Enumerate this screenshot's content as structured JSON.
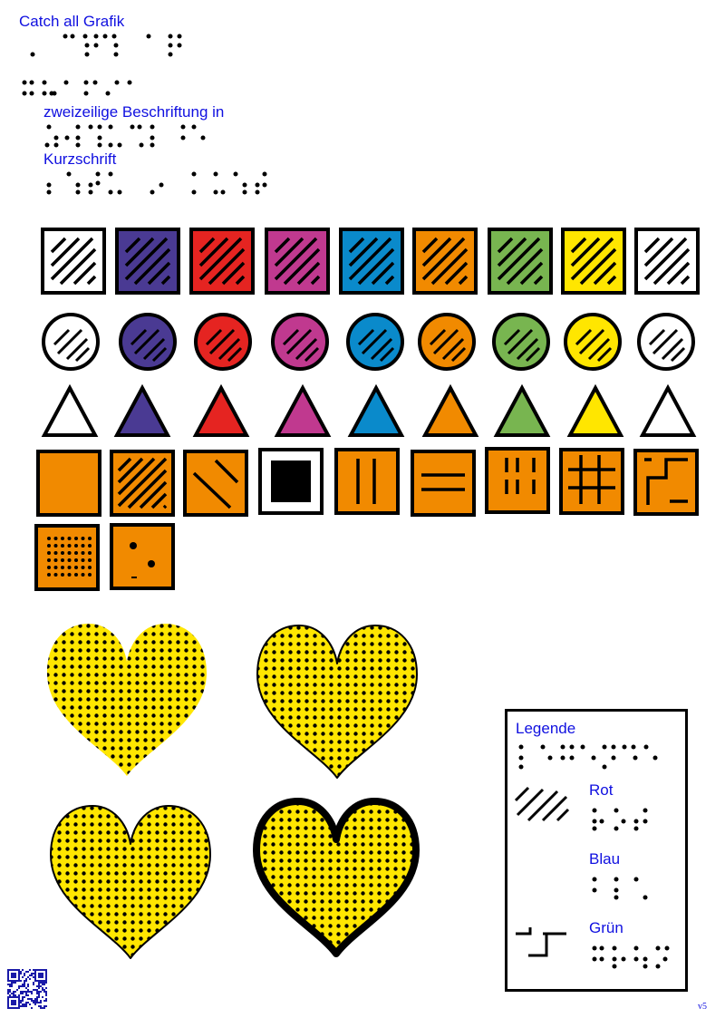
{
  "header": {
    "title": "Catch all Grafik",
    "subtitle_line1": "zweizeilige Beschriftung in",
    "subtitle_line2": "Kurzschrift"
  },
  "colors": {
    "label_text": "#1010e0",
    "white": "#ffffff",
    "purple": "#4a3a93",
    "red": "#e52421",
    "magenta": "#c0398f",
    "blue": "#0a8acb",
    "orange": "#f18a00",
    "green": "#78b550",
    "yellow": "#ffe600",
    "black": "#000000"
  },
  "swatch_colors": [
    "white",
    "purple",
    "red",
    "magenta",
    "blue",
    "orange",
    "green",
    "yellow",
    "white"
  ],
  "orange_patterns": [
    "solid",
    "diagonal-hatch",
    "diagonal-sparse",
    "hollow-square",
    "vertical-lines",
    "horizontal-lines",
    "dashed-verticals",
    "grid",
    "step-line",
    "dot-grid",
    "scattered-dots"
  ],
  "hearts": [
    {
      "style": "dotted-no-outline",
      "fill": "yellow"
    },
    {
      "style": "dotted-thin-outline",
      "fill": "yellow"
    },
    {
      "style": "dotted-thin-outline",
      "fill": "yellow"
    },
    {
      "style": "dotted-thick-outline",
      "fill": "yellow"
    }
  ],
  "legend": {
    "title": "Legende",
    "items": [
      {
        "label": "Rot",
        "pattern": "diagonal-hatch"
      },
      {
        "label": "Blau",
        "pattern": "none"
      },
      {
        "label": "Grün",
        "pattern": "step-line"
      }
    ]
  },
  "footer": {
    "version": "v5"
  }
}
